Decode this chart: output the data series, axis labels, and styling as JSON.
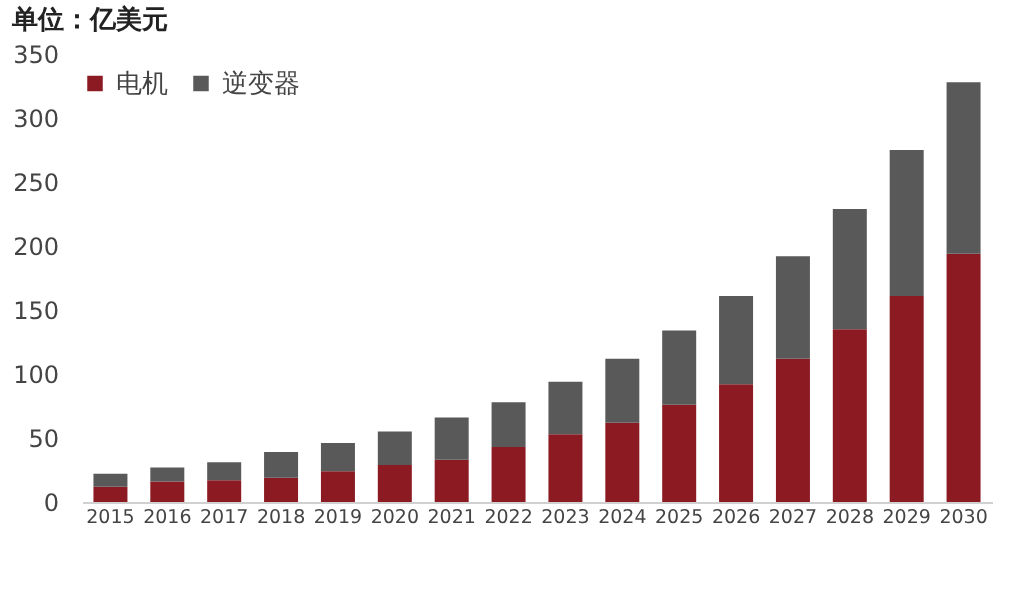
{
  "chart_data": {
    "type": "bar",
    "title": "单位：亿美元",
    "stacked": true,
    "legend": "top",
    "grid": false,
    "categories": [
      "2015",
      "2016",
      "2017",
      "2018",
      "2019",
      "2020",
      "2021",
      "2022",
      "2023",
      "2024",
      "2025",
      "2026",
      "2027",
      "2028",
      "2029",
      "2030"
    ],
    "series": [
      {
        "name": "电机",
        "color": "#8b1a22",
        "values": [
          12,
          16,
          17,
          19,
          24,
          29,
          33,
          43,
          53,
          62,
          76,
          92,
          112,
          135,
          161,
          194
        ]
      },
      {
        "name": "逆变器",
        "color": "#595959",
        "values": [
          10,
          11,
          14,
          20,
          22,
          26,
          33,
          35,
          41,
          50,
          58,
          69,
          80,
          94,
          114,
          134
        ]
      }
    ],
    "ylim": [
      0,
      350
    ],
    "yticks": [
      0,
      50,
      100,
      150,
      200,
      250,
      300,
      350
    ]
  }
}
